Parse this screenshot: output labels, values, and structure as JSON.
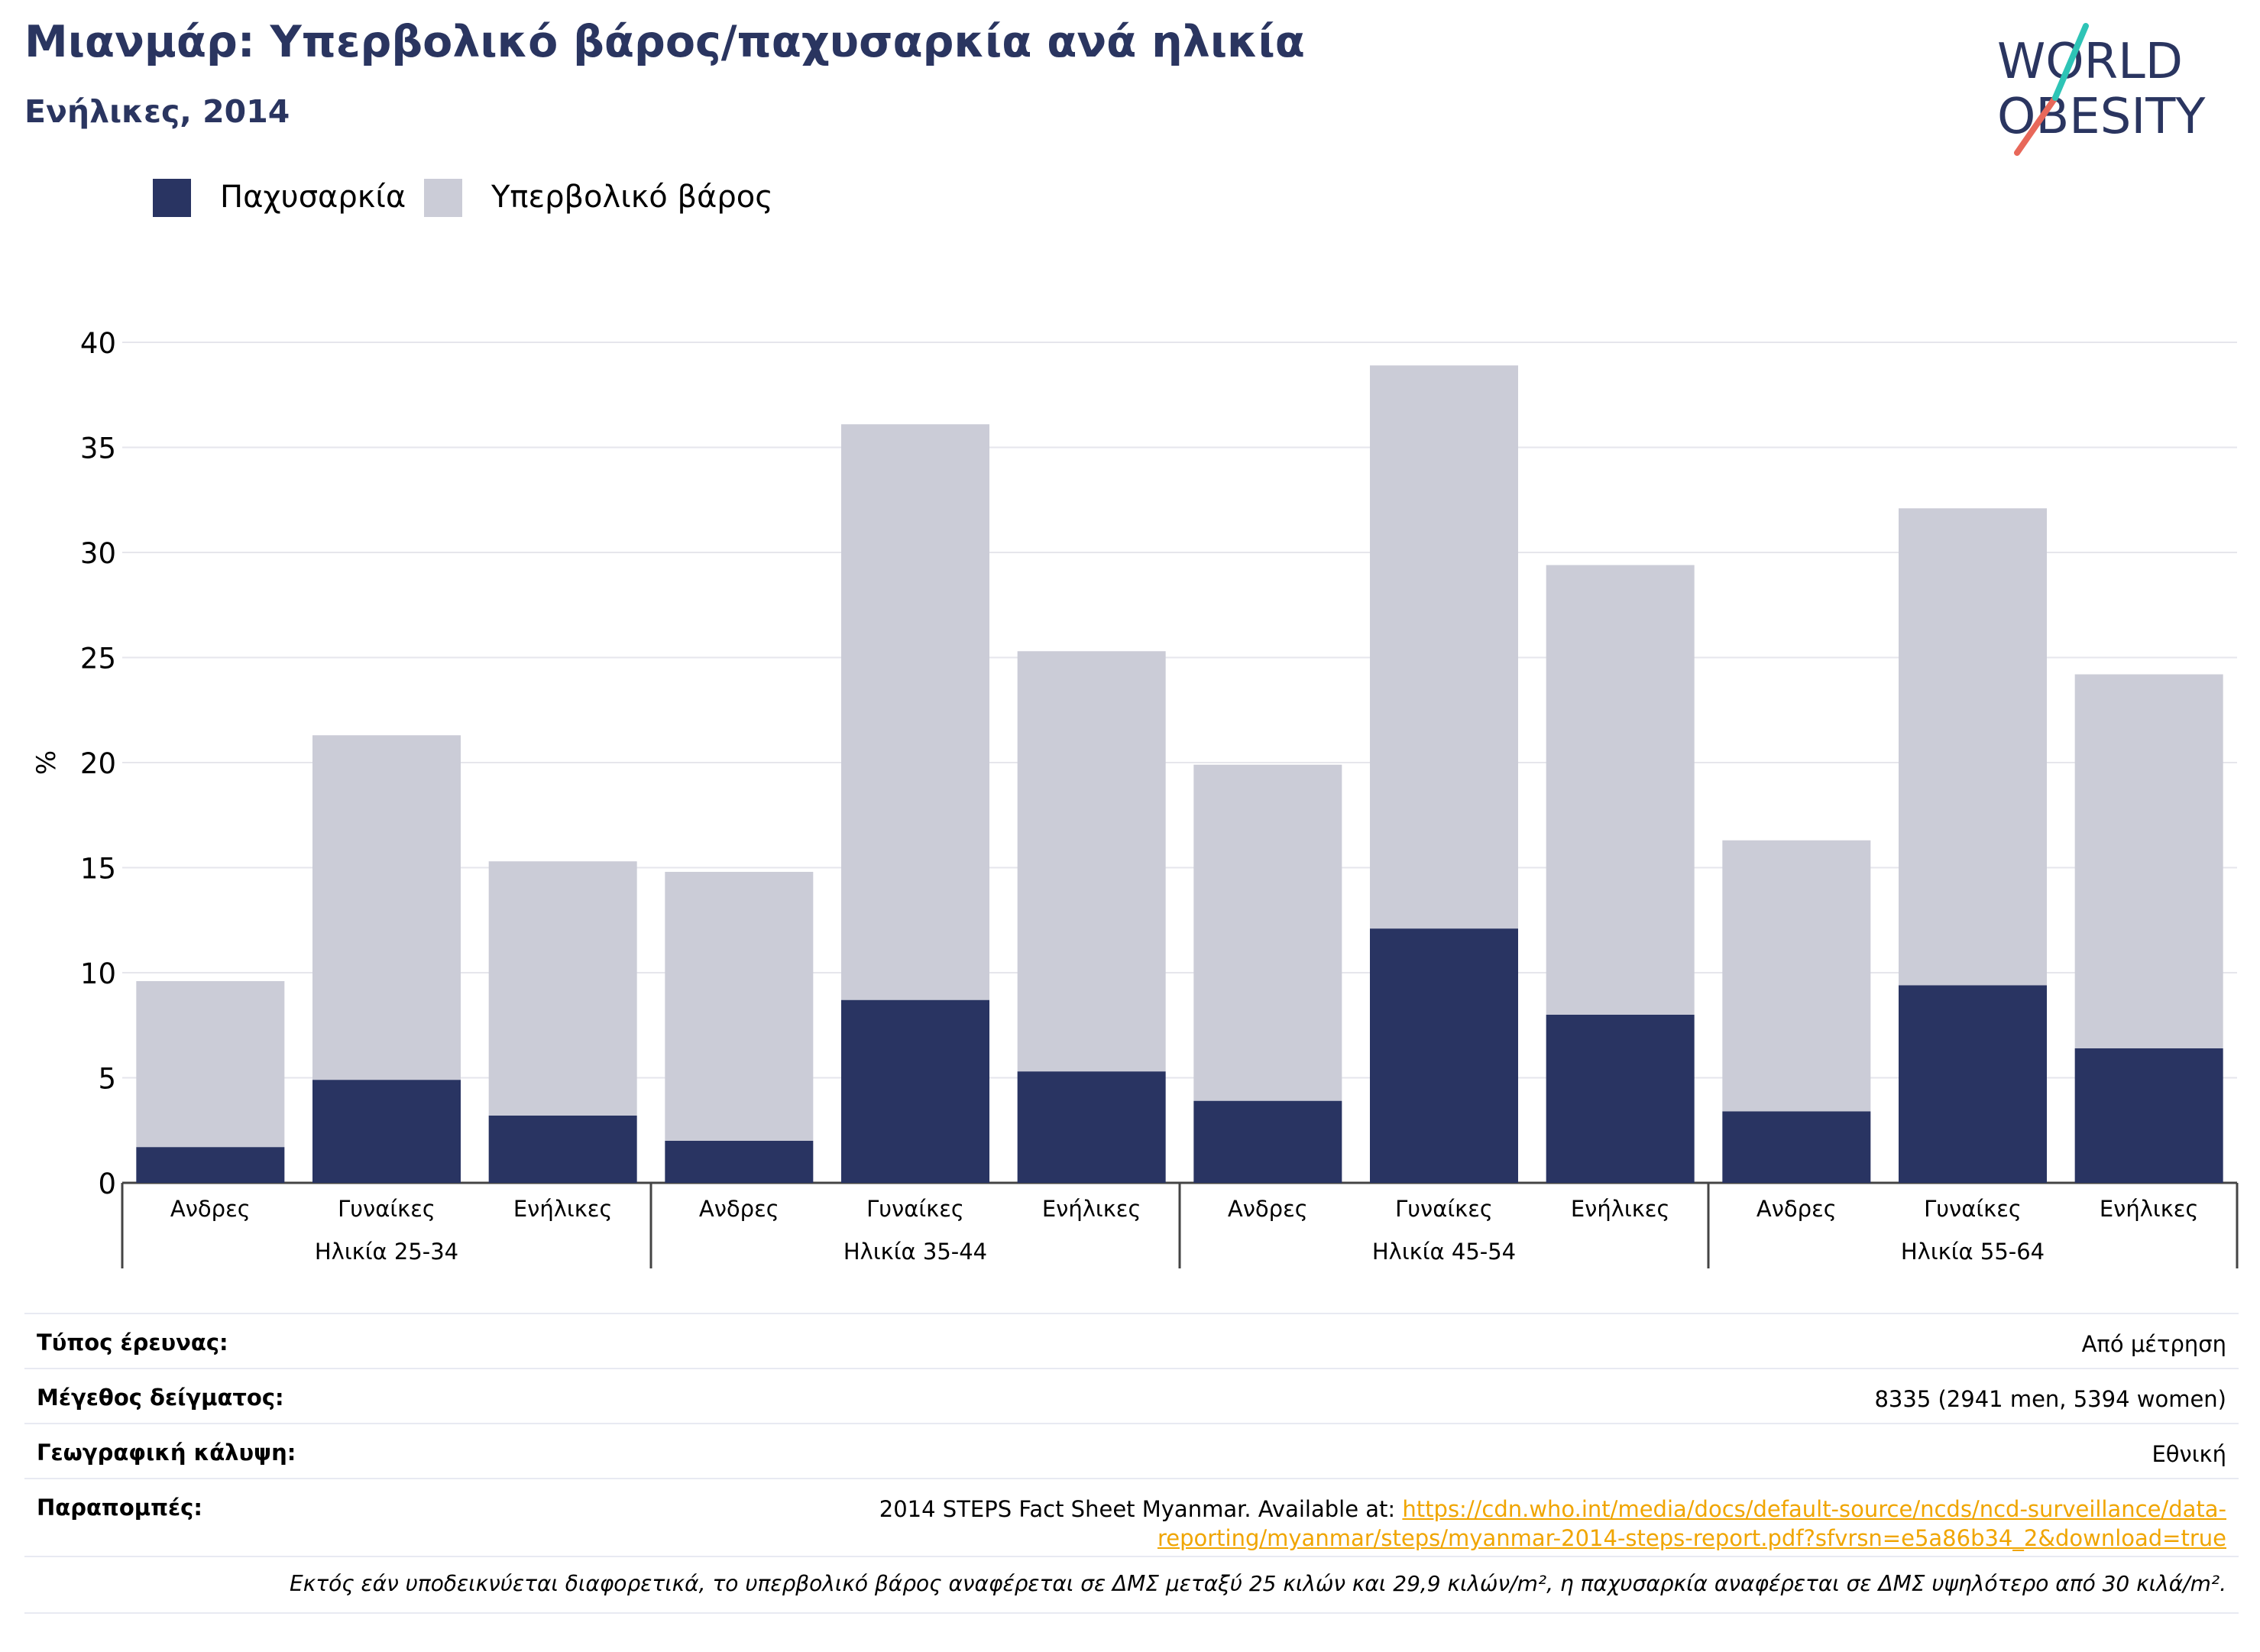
{
  "header": {
    "title": "Μιανμάρ: Υπερβολικό βάρος/παχυσαρκία ανά ηλικία",
    "subtitle": "Ενήλικες, 2014"
  },
  "logo": {
    "line1": "WORLD",
    "line2": "OBESITY"
  },
  "legend": [
    {
      "label": "Παχυσαρκία",
      "color": "#293462"
    },
    {
      "label": "Υπερβολικό βάρος",
      "color": "#cbccd7"
    }
  ],
  "chart_data": {
    "type": "bar",
    "stacked": true,
    "ylabel": "%",
    "ylim": [
      0,
      40
    ],
    "yticks": [
      0,
      5,
      10,
      15,
      20,
      25,
      30,
      35,
      40
    ],
    "grid": true,
    "legend_position": "top-left",
    "groups": [
      "Ηλικία 25-34",
      "Ηλικία 35-44",
      "Ηλικία 45-54",
      "Ηλικία 55-64"
    ],
    "categories": [
      "Ανδρες",
      "Γυναίκες",
      "Ενήλικες",
      "Ανδρες",
      "Γυναίκες",
      "Ενήλικες",
      "Ανδρες",
      "Γυναίκες",
      "Ενήλικες",
      "Ανδρες",
      "Γυναίκες",
      "Ενήλικες"
    ],
    "series": [
      {
        "name": "Παχυσαρκία",
        "color": "#293462",
        "values": [
          1.7,
          4.9,
          3.2,
          2.0,
          8.7,
          5.3,
          3.9,
          12.1,
          8.0,
          3.4,
          9.4,
          6.4
        ]
      },
      {
        "name": "Υπερβολικό βάρος",
        "color": "#cbccd7",
        "values": [
          7.9,
          16.4,
          12.1,
          12.8,
          27.4,
          20.0,
          16.0,
          26.8,
          21.4,
          12.9,
          22.7,
          17.8
        ]
      }
    ]
  },
  "info": {
    "survey_type_label": "Τύπος έρευνας:",
    "survey_type_value": "Από μέτρηση",
    "sample_size_label": "Μέγεθος δείγματος:",
    "sample_size_value": "8335 (2941 men, 5394 women)",
    "coverage_label": "Γεωγραφική κάλυψη:",
    "coverage_value": "Εθνική",
    "references_label": "Παραπομπές:",
    "references_text": "2014 STEPS Fact Sheet Myanmar. Available at: ",
    "references_link_1": "https://cdn.who.int/media/docs/default-source/ncds/ncd-surveillance/data-",
    "references_link_2": "reporting/myanmar/steps/myanmar-2014-steps-report.pdf?sfvrsn=e5a86b34_2&download=true",
    "note": "Εκτός εάν υποδεικνύεται διαφορετικά, το υπερβολικό βάρος αναφέρεται σε ΔΜΣ μεταξύ 25 κιλών και 29,9 κιλών/m², η παχυσαρκία αναφέρεται σε ΔΜΣ υψηλότερο από 30 κιλά/m²."
  }
}
